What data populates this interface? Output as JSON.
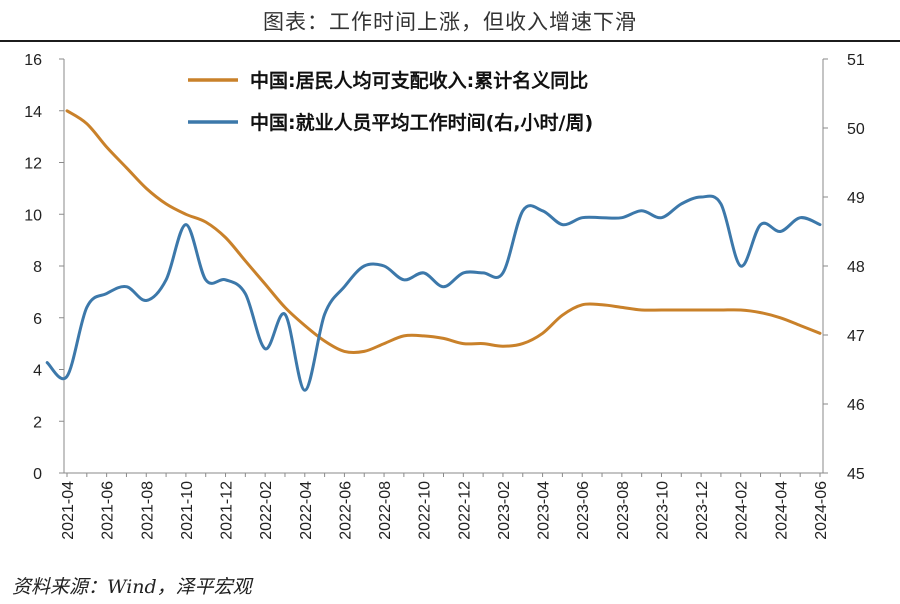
{
  "page": {
    "title": "图表：工作时间上涨，但收入增速下滑",
    "source": "资料来源：Wind，泽平宏观"
  },
  "chart_data": {
    "type": "line",
    "x": [
      "2021-04",
      "2021-05",
      "2021-06",
      "2021-07",
      "2021-08",
      "2021-09",
      "2021-10",
      "2021-11",
      "2021-12",
      "2022-01",
      "2022-02",
      "2022-03",
      "2022-04",
      "2022-05",
      "2022-06",
      "2022-07",
      "2022-08",
      "2022-09",
      "2022-10",
      "2022-11",
      "2022-12",
      "2023-01",
      "2023-02",
      "2023-03",
      "2023-04",
      "2023-05",
      "2023-06",
      "2023-07",
      "2023-08",
      "2023-09",
      "2023-10",
      "2023-11",
      "2023-12",
      "2024-01",
      "2024-02",
      "2024-03",
      "2024-04",
      "2024-05",
      "2024-06"
    ],
    "x_tick_labels": [
      "2021-04",
      "2021-06",
      "2021-08",
      "2021-10",
      "2021-12",
      "2022-02",
      "2022-04",
      "2022-06",
      "2022-08",
      "2022-10",
      "2022-12",
      "2023-02",
      "2023-04",
      "2023-06",
      "2023-08",
      "2023-10",
      "2023-12",
      "2024-02",
      "2024-04",
      "2024-06"
    ],
    "y_left": {
      "lim": [
        0,
        16
      ],
      "ticks": [
        0,
        2,
        4,
        6,
        8,
        10,
        12,
        14,
        16
      ]
    },
    "y_right": {
      "lim": [
        45,
        51
      ],
      "ticks": [
        45,
        46,
        47,
        48,
        49,
        50,
        51
      ]
    },
    "grid": false,
    "legend_position": "top-center",
    "series": [
      {
        "name": "中国:居民人均可支配收入:累计名义同比",
        "axis": "left",
        "color": "#c9812a",
        "x": [
          "2021-04",
          "2021-05",
          "2021-06",
          "2021-07",
          "2021-08",
          "2021-09",
          "2021-10",
          "2021-11",
          "2021-12",
          "2022-01",
          "2022-02",
          "2022-03",
          "2022-04",
          "2022-05",
          "2022-06",
          "2022-07",
          "2022-08",
          "2022-09",
          "2022-10",
          "2022-11",
          "2022-12",
          "2023-01",
          "2023-02",
          "2023-03",
          "2023-04",
          "2023-05",
          "2023-06",
          "2023-07",
          "2023-08",
          "2023-09",
          "2023-10",
          "2023-11",
          "2023-12",
          "2024-01",
          "2024-02",
          "2024-03",
          "2024-04",
          "2024-05",
          "2024-06"
        ],
        "values": [
          14.0,
          13.5,
          12.6,
          11.8,
          11.0,
          10.4,
          10.0,
          9.7,
          9.1,
          8.2,
          7.3,
          6.4,
          5.7,
          5.1,
          4.7,
          4.7,
          5.0,
          5.3,
          5.3,
          5.2,
          5.0,
          5.0,
          4.9,
          5.0,
          5.4,
          6.1,
          6.5,
          6.5,
          6.4,
          6.3,
          6.3,
          6.3,
          6.3,
          6.3,
          6.3,
          6.2,
          6.0,
          5.7,
          5.4
        ]
      },
      {
        "name": "中国:就业人员平均工作时间(右,小时/周)",
        "axis": "right",
        "color": "#3c78aa",
        "x": [
          "2021-03",
          "2021-04",
          "2021-05",
          "2021-06",
          "2021-07",
          "2021-08",
          "2021-09",
          "2021-10",
          "2021-11",
          "2021-12",
          "2022-01",
          "2022-02",
          "2022-03",
          "2022-04",
          "2022-05",
          "2022-06",
          "2022-07",
          "2022-08",
          "2022-09",
          "2022-10",
          "2022-11",
          "2022-12",
          "2023-01",
          "2023-02",
          "2023-03",
          "2023-04",
          "2023-05",
          "2023-06",
          "2023-07",
          "2023-08",
          "2023-09",
          "2023-10",
          "2023-11",
          "2023-12",
          "2024-01",
          "2024-02",
          "2024-03",
          "2024-04",
          "2024-05",
          "2024-06"
        ],
        "values": [
          46.6,
          46.4,
          47.4,
          47.6,
          47.7,
          47.5,
          47.8,
          48.6,
          47.8,
          47.8,
          47.6,
          46.8,
          47.3,
          46.2,
          47.3,
          47.7,
          48.0,
          48.0,
          47.8,
          47.9,
          47.7,
          47.9,
          47.9,
          47.9,
          48.8,
          48.8,
          48.6,
          48.7,
          48.7,
          48.7,
          48.8,
          48.7,
          48.9,
          49.0,
          48.9,
          48.0,
          48.6,
          48.5,
          48.7,
          48.6
        ]
      }
    ]
  }
}
